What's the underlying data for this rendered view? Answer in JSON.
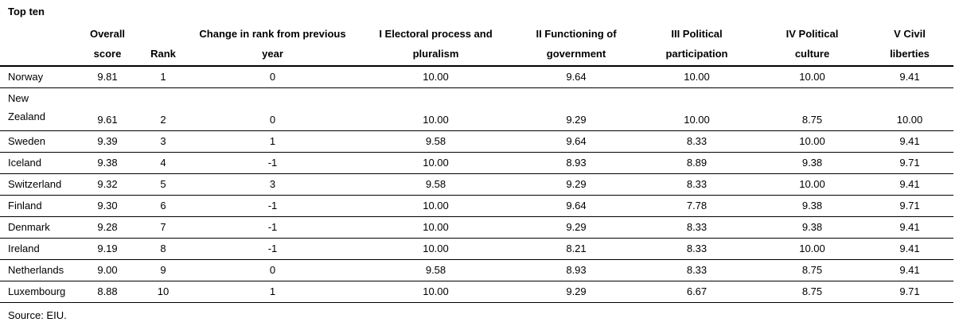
{
  "chart_data": {
    "type": "table",
    "title": "Top ten",
    "source": "Source: EIU.",
    "columns": [
      {
        "key": "country",
        "label": ""
      },
      {
        "key": "score",
        "label": "Overall\nscore"
      },
      {
        "key": "rank",
        "label": "Rank"
      },
      {
        "key": "change",
        "label": "Change in rank from previous\nyear"
      },
      {
        "key": "i",
        "label": "I Electoral process and\npluralism"
      },
      {
        "key": "ii",
        "label": "II Functioning of\ngovernment"
      },
      {
        "key": "iii",
        "label": "III Political\nparticipation"
      },
      {
        "key": "iv",
        "label": "IV Political\nculture"
      },
      {
        "key": "v",
        "label": "V Civil\nliberties"
      }
    ],
    "rows": [
      {
        "country": "Norway",
        "score": "9.81",
        "rank": "1",
        "change": "0",
        "i": "10.00",
        "ii": "9.64",
        "iii": "10.00",
        "iv": "10.00",
        "v": "9.41"
      },
      {
        "country": "New\nZealand",
        "score": "9.61",
        "rank": "2",
        "change": "0",
        "i": "10.00",
        "ii": "9.29",
        "iii": "10.00",
        "iv": "8.75",
        "v": "10.00",
        "tall": true
      },
      {
        "country": "Sweden",
        "score": "9.39",
        "rank": "3",
        "change": "1",
        "i": "9.58",
        "ii": "9.64",
        "iii": "8.33",
        "iv": "10.00",
        "v": "9.41"
      },
      {
        "country": "Iceland",
        "score": "9.38",
        "rank": "4",
        "change": "-1",
        "i": "10.00",
        "ii": "8.93",
        "iii": "8.89",
        "iv": "9.38",
        "v": "9.71"
      },
      {
        "country": "Switzerland",
        "score": "9.32",
        "rank": "5",
        "change": "3",
        "i": "9.58",
        "ii": "9.29",
        "iii": "8.33",
        "iv": "10.00",
        "v": "9.41"
      },
      {
        "country": "Finland",
        "score": "9.30",
        "rank": "6",
        "change": "-1",
        "i": "10.00",
        "ii": "9.64",
        "iii": "7.78",
        "iv": "9.38",
        "v": "9.71"
      },
      {
        "country": "Denmark",
        "score": "9.28",
        "rank": "7",
        "change": "-1",
        "i": "10.00",
        "ii": "9.29",
        "iii": "8.33",
        "iv": "9.38",
        "v": "9.41"
      },
      {
        "country": "Ireland",
        "score": "9.19",
        "rank": "8",
        "change": "-1",
        "i": "10.00",
        "ii": "8.21",
        "iii": "8.33",
        "iv": "10.00",
        "v": "9.41"
      },
      {
        "country": "Netherlands",
        "score": "9.00",
        "rank": "9",
        "change": "0",
        "i": "9.58",
        "ii": "8.93",
        "iii": "8.33",
        "iv": "8.75",
        "v": "9.41"
      },
      {
        "country": "Luxembourg",
        "score": "8.88",
        "rank": "10",
        "change": "1",
        "i": "10.00",
        "ii": "9.29",
        "iii": "6.67",
        "iv": "8.75",
        "v": "9.71"
      }
    ]
  }
}
